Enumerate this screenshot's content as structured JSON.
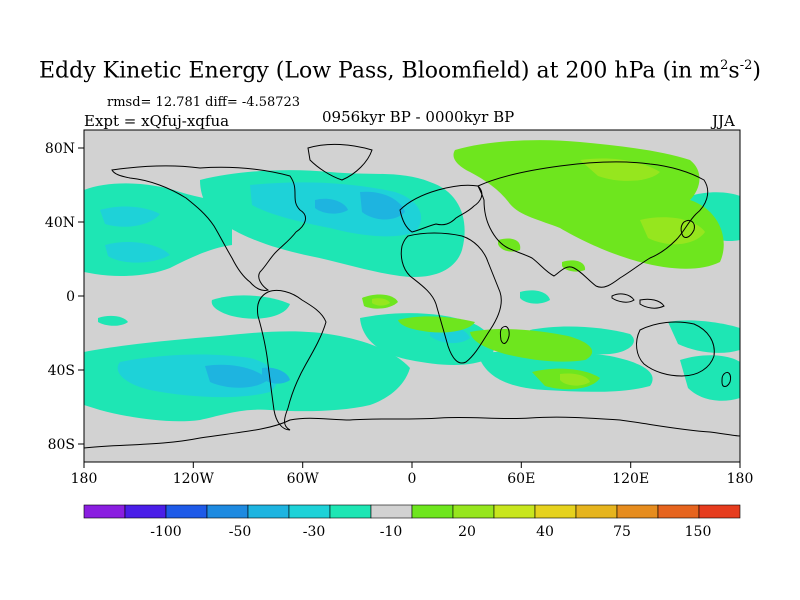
{
  "title": {
    "main": "Eddy Kinetic Energy (Low Pass, Bloomfield) at 200 hPa (in m",
    "sup1": "2",
    "mid": "s",
    "sup2": "-2",
    "close": ")"
  },
  "stats": "rmsd= 12.781 diff= -4.58723",
  "experiment": "Expt = xQfuj-xqfua",
  "period": "0956kyr BP - 0000kyr BP",
  "season": "JJA",
  "axes": {
    "lon_ticks": [
      "180",
      "120W",
      "60W",
      "0",
      "60E",
      "120E",
      "180"
    ],
    "lat_ticks": [
      "80N",
      "40N",
      "0",
      "40S",
      "80S"
    ]
  },
  "legend": {
    "labels": [
      "-100",
      "-50",
      "-30",
      "-10",
      "20",
      "40",
      "75",
      "150"
    ],
    "colors": [
      "#8a1ee0",
      "#4a1ee8",
      "#1e5ae8",
      "#1e8ae0",
      "#1eb4e0",
      "#1ed2d8",
      "#1ee6b4",
      "#d2d2d2",
      "#6ee61e",
      "#96e61e",
      "#c8e61e",
      "#e6d21e",
      "#e6b41e",
      "#e68c1e",
      "#e6641e",
      "#e63c1e"
    ]
  },
  "map_colors": {
    "ocean_background": "#d2d2d2",
    "neg_10_30": "#1ee6b4",
    "neg_30_50": "#1ed2d8",
    "neg_50_100": "#1eb4e0",
    "pos_10_20": "#6ee61e",
    "pos_20_40": "#96e61e"
  }
}
